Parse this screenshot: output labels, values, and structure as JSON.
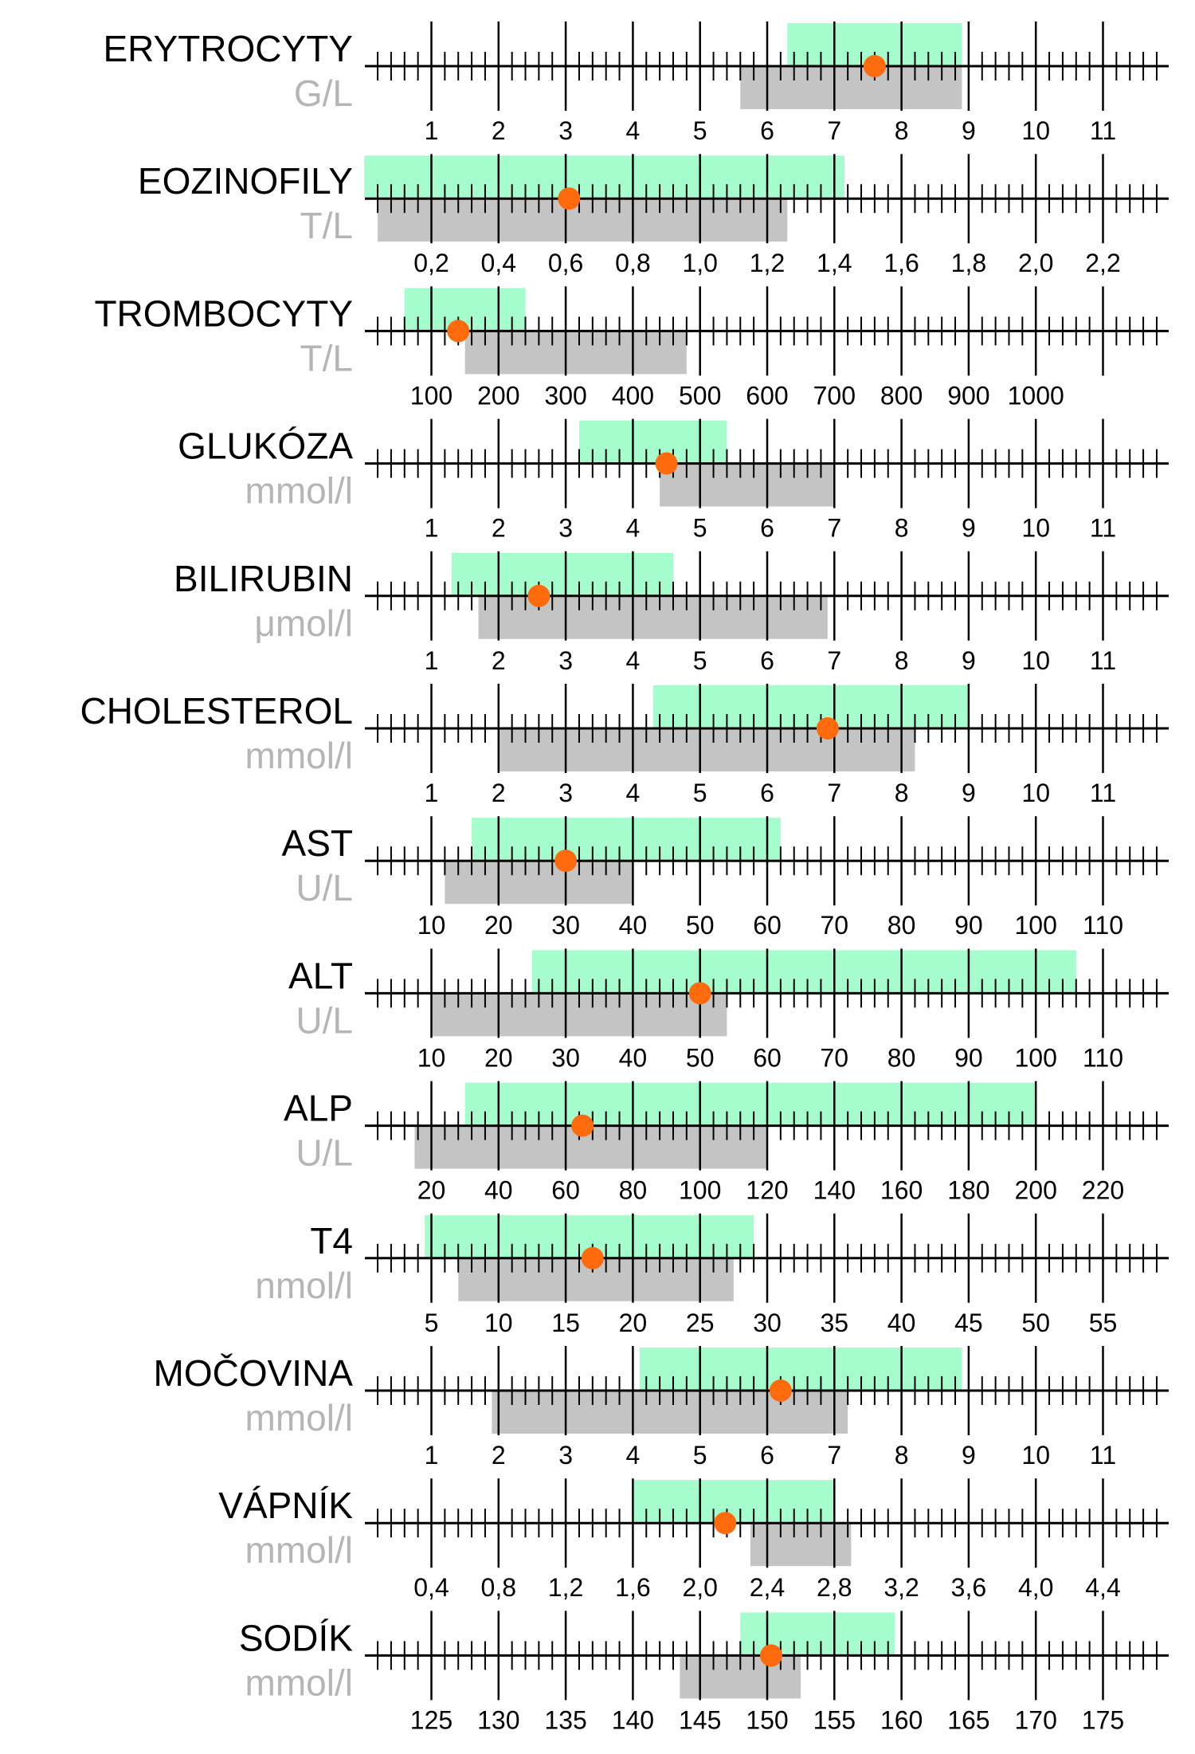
{
  "colors": {
    "reference_range": "#a5fccd",
    "measured_range": "#c4c4c4",
    "marker": "#fe6a0c",
    "axis": "#000000",
    "unit_text": "#b5b5b5"
  },
  "chart_data": [
    {
      "type": "range-scale",
      "name": "ERYTROCYTY",
      "unit": "G/L",
      "ticks": [
        "1",
        "2",
        "3",
        "4",
        "5",
        "6",
        "7",
        "8",
        "9",
        "10",
        "11"
      ],
      "reference_range": [
        6.3,
        8.9
      ],
      "measured_range": [
        5.6,
        8.9
      ],
      "value": 7.6
    },
    {
      "type": "range-scale",
      "name": "EOZINOFILY",
      "unit": "T/L",
      "ticks": [
        "0,2",
        "0,4",
        "0,6",
        "0,8",
        "1,0",
        "1,2",
        "1,4",
        "1,6",
        "1,8",
        "2,0",
        "2,2"
      ],
      "reference_range": [
        0.0,
        1.43
      ],
      "measured_range": [
        0.04,
        1.26
      ],
      "value": 0.61
    },
    {
      "type": "range-scale",
      "name": "TROMBOCYTY",
      "unit": "T/L",
      "ticks": [
        "100",
        "200",
        "300",
        "400",
        "500",
        "600",
        "700",
        "800",
        "900",
        "1000"
      ],
      "reference_range": [
        60,
        240
      ],
      "measured_range": [
        150,
        480
      ],
      "value": 140
    },
    {
      "type": "range-scale",
      "name": "GLUKÓZA",
      "unit": "mmol/l",
      "ticks": [
        "1",
        "2",
        "3",
        "4",
        "5",
        "6",
        "7",
        "8",
        "9",
        "10",
        "11"
      ],
      "reference_range": [
        3.2,
        5.4
      ],
      "measured_range": [
        4.4,
        7.0
      ],
      "value": 4.5
    },
    {
      "type": "range-scale",
      "name": "BILIRUBIN",
      "unit": "μmol/l",
      "ticks": [
        "1",
        "2",
        "3",
        "4",
        "5",
        "6",
        "7",
        "8",
        "9",
        "10",
        "11"
      ],
      "reference_range": [
        1.3,
        4.6
      ],
      "measured_range": [
        1.7,
        6.9
      ],
      "value": 2.6
    },
    {
      "type": "range-scale",
      "name": "CHOLESTEROL",
      "unit": "mmol/l",
      "ticks": [
        "1",
        "2",
        "3",
        "4",
        "5",
        "6",
        "7",
        "8",
        "9",
        "10",
        "11"
      ],
      "reference_range": [
        4.3,
        9.0
      ],
      "measured_range": [
        2.0,
        8.2
      ],
      "value": 6.9
    },
    {
      "type": "range-scale",
      "name": "AST",
      "unit": "U/L",
      "ticks": [
        "10",
        "20",
        "30",
        "40",
        "50",
        "60",
        "70",
        "80",
        "90",
        "100",
        "110"
      ],
      "reference_range": [
        16,
        62
      ],
      "measured_range": [
        12,
        40
      ],
      "value": 30
    },
    {
      "type": "range-scale",
      "name": "ALT",
      "unit": "U/L",
      "ticks": [
        "10",
        "20",
        "30",
        "40",
        "50",
        "60",
        "70",
        "80",
        "90",
        "100",
        "110"
      ],
      "reference_range": [
        25,
        106
      ],
      "measured_range": [
        10,
        54
      ],
      "value": 50
    },
    {
      "type": "range-scale",
      "name": "ALP",
      "unit": "U/L",
      "ticks": [
        "20",
        "40",
        "60",
        "80",
        "100",
        "120",
        "140",
        "160",
        "180",
        "200",
        "220"
      ],
      "reference_range": [
        30,
        200
      ],
      "measured_range": [
        15,
        120
      ],
      "value": 65
    },
    {
      "type": "range-scale",
      "name": "T4",
      "unit": "nmol/l",
      "ticks": [
        "5",
        "10",
        "15",
        "20",
        "25",
        "30",
        "35",
        "40",
        "45",
        "50",
        "55"
      ],
      "reference_range": [
        4.5,
        29
      ],
      "measured_range": [
        7,
        27.5
      ],
      "value": 17
    },
    {
      "type": "range-scale",
      "name": "MOČOVINA",
      "unit": "mmol/l",
      "ticks": [
        "1",
        "2",
        "3",
        "4",
        "5",
        "6",
        "7",
        "8",
        "9",
        "10",
        "11"
      ],
      "reference_range": [
        4.1,
        8.9
      ],
      "measured_range": [
        1.9,
        7.2
      ],
      "value": 6.2
    },
    {
      "type": "range-scale",
      "name": "VÁPNÍK",
      "unit": "mmol/l",
      "ticks": [
        "0,4",
        "0,8",
        "1,2",
        "1,6",
        "2,0",
        "2,4",
        "2,8",
        "3,2",
        "3,6",
        "4,0",
        "4,4"
      ],
      "reference_range": [
        1.6,
        2.8
      ],
      "measured_range": [
        2.3,
        2.9
      ],
      "value": 2.15
    },
    {
      "type": "range-scale",
      "name": "SODÍK",
      "unit": "mmol/l",
      "ticks": [
        "125",
        "130",
        "135",
        "140",
        "145",
        "150",
        "155",
        "160",
        "165",
        "170",
        "175"
      ],
      "reference_range": [
        148,
        159.5
      ],
      "measured_range": [
        143.5,
        152.5
      ],
      "value": 150.3
    }
  ]
}
